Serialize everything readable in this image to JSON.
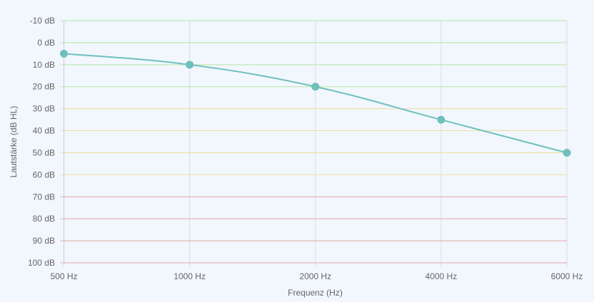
{
  "chart_data": {
    "type": "line",
    "xlabel": "Frequenz (Hz)",
    "ylabel": "Lautstärke (dB HL)",
    "categories": [
      "500 Hz",
      "1000 Hz",
      "2000 Hz",
      "4000 Hz",
      "6000 Hz"
    ],
    "y_ticks": [
      "-10 dB",
      "0 dB",
      "10 dB",
      "20 dB",
      "30 dB",
      "40 dB",
      "50 dB",
      "60 dB",
      "70 dB",
      "80 dB",
      "90 dB",
      "100 dB"
    ],
    "ylim": [
      -10,
      100
    ],
    "y_reversed": true,
    "grid": true,
    "series": [
      {
        "values": [
          5,
          10,
          20,
          35,
          50
        ],
        "color": "#6fbfbe"
      }
    ],
    "band_colors": {
      "normal": "#b9e6a6",
      "mild": "#f0dca0",
      "severe": "#e8a6a6",
      "vertical": "#d9dee6"
    }
  }
}
